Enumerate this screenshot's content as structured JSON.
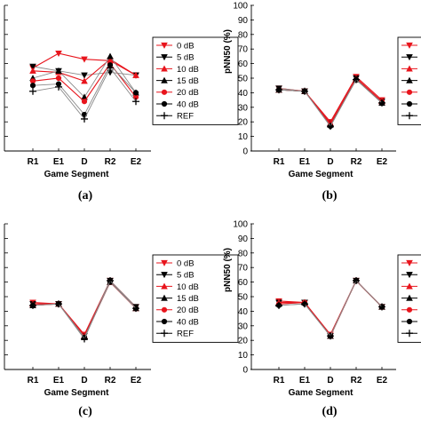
{
  "chart_data": [
    {
      "panel_label": "(a)",
      "type": "line",
      "categories": [
        "R1",
        "E1",
        "D",
        "R2",
        "E2"
      ],
      "xlabel": "Game Segment",
      "ylabel": "",
      "ylim": [
        0,
        100
      ],
      "yticks": [],
      "legend": {
        "entries": [
          "0 dB",
          "5 dB",
          "10 dB",
          "15 dB",
          "20 dB",
          "40 dB",
          "REF"
        ],
        "placement": "right"
      },
      "series": [
        {
          "name": "0 dB",
          "values": [
            57,
            67,
            63,
            62,
            52
          ],
          "color": "#e8141c",
          "marker": "triangle-down"
        },
        {
          "name": "5 dB",
          "values": [
            58,
            55,
            52,
            54,
            52
          ],
          "color": "#000000",
          "marker": "triangle-down"
        },
        {
          "name": "10 dB",
          "values": [
            55,
            54,
            48,
            63,
            52
          ],
          "color": "#e8141c",
          "marker": "triangle-up"
        },
        {
          "name": "15 dB",
          "values": [
            50,
            55,
            37,
            65,
            40
          ],
          "color": "#000000",
          "marker": "triangle-up"
        },
        {
          "name": "20 dB",
          "values": [
            48,
            50,
            34,
            60,
            37
          ],
          "color": "#e8141c",
          "marker": "circle"
        },
        {
          "name": "40 dB",
          "values": [
            45,
            46,
            25,
            59,
            40
          ],
          "color": "#000000",
          "marker": "circle"
        },
        {
          "name": "REF",
          "values": [
            41,
            44,
            22,
            57,
            34
          ],
          "color": "#000000",
          "marker": "plus"
        }
      ]
    },
    {
      "panel_label": "(b)",
      "type": "line",
      "categories": [
        "R1",
        "E1",
        "D",
        "R2",
        "E2"
      ],
      "xlabel": "Game Segment",
      "ylabel": "pNN50 (%)",
      "ylim": [
        0,
        100
      ],
      "yticks": [
        "0",
        "10",
        "20",
        "30",
        "40",
        "50",
        "60",
        "70",
        "80",
        "90",
        "100"
      ],
      "legend": {
        "entries": [],
        "placement": "right"
      },
      "series": [
        {
          "name": "",
          "values": [
            43,
            41,
            20,
            51,
            35
          ],
          "color": "#e8141c",
          "marker": "triangle-down"
        },
        {
          "name": "",
          "values": [
            43,
            41,
            19,
            50,
            34
          ],
          "color": "#000000",
          "marker": "triangle-down"
        },
        {
          "name": "",
          "values": [
            42,
            41,
            19,
            50,
            34
          ],
          "color": "#e8141c",
          "marker": "triangle-up"
        },
        {
          "name": "",
          "values": [
            42,
            41,
            18,
            49,
            33
          ],
          "color": "#000000",
          "marker": "triangle-up"
        },
        {
          "name": "",
          "values": [
            42,
            41,
            18,
            49,
            34
          ],
          "color": "#e8141c",
          "marker": "circle"
        },
        {
          "name": "",
          "values": [
            42,
            41,
            17,
            49,
            33
          ],
          "color": "#000000",
          "marker": "circle"
        },
        {
          "name": "",
          "values": [
            42,
            41,
            17,
            49,
            33
          ],
          "color": "#000000",
          "marker": "plus"
        }
      ]
    },
    {
      "panel_label": "(c)",
      "type": "line",
      "categories": [
        "R1",
        "E1",
        "D",
        "R2",
        "E2"
      ],
      "xlabel": "Game Segment",
      "ylabel": "",
      "ylim": [
        0,
        100
      ],
      "yticks": [],
      "legend": {
        "entries": [
          "0 dB",
          "5 dB",
          "10 dB",
          "15 dB",
          "20 dB",
          "40 dB",
          "REF"
        ],
        "placement": "right"
      },
      "series": [
        {
          "name": "0 dB",
          "values": [
            46,
            45,
            24,
            61,
            43
          ],
          "color": "#e8141c",
          "marker": "triangle-down"
        },
        {
          "name": "5 dB",
          "values": [
            45,
            45,
            23,
            61,
            43
          ],
          "color": "#000000",
          "marker": "triangle-down"
        },
        {
          "name": "10 dB",
          "values": [
            45,
            45,
            23,
            60,
            42
          ],
          "color": "#e8141c",
          "marker": "triangle-up"
        },
        {
          "name": "15 dB",
          "values": [
            44,
            45,
            22,
            60,
            42
          ],
          "color": "#000000",
          "marker": "triangle-up"
        },
        {
          "name": "20 dB",
          "values": [
            44,
            45,
            22,
            60,
            42
          ],
          "color": "#e8141c",
          "marker": "circle"
        },
        {
          "name": "40 dB",
          "values": [
            44,
            45,
            22,
            60,
            42
          ],
          "color": "#000000",
          "marker": "circle"
        },
        {
          "name": "REF",
          "values": [
            44,
            45,
            21,
            61,
            42
          ],
          "color": "#000000",
          "marker": "plus"
        }
      ]
    },
    {
      "panel_label": "(d)",
      "type": "line",
      "categories": [
        "R1",
        "E1",
        "D",
        "R2",
        "E2"
      ],
      "xlabel": "Game Segment",
      "ylabel": "pNN50 (%)",
      "ylim": [
        0,
        100
      ],
      "yticks": [
        "0",
        "10",
        "20",
        "30",
        "40",
        "50",
        "60",
        "70",
        "80",
        "90",
        "100"
      ],
      "legend": {
        "entries": [],
        "placement": "right"
      },
      "series": [
        {
          "name": "",
          "values": [
            47,
            46,
            24,
            61,
            43
          ],
          "color": "#e8141c",
          "marker": "triangle-down"
        },
        {
          "name": "",
          "values": [
            46,
            46,
            23,
            61,
            43
          ],
          "color": "#000000",
          "marker": "triangle-down"
        },
        {
          "name": "",
          "values": [
            46,
            46,
            23,
            61,
            43
          ],
          "color": "#e8141c",
          "marker": "triangle-up"
        },
        {
          "name": "",
          "values": [
            45,
            46,
            23,
            61,
            43
          ],
          "color": "#000000",
          "marker": "triangle-up"
        },
        {
          "name": "",
          "values": [
            45,
            46,
            23,
            61,
            43
          ],
          "color": "#e8141c",
          "marker": "circle"
        },
        {
          "name": "",
          "values": [
            44,
            45,
            23,
            61,
            43
          ],
          "color": "#000000",
          "marker": "circle"
        },
        {
          "name": "",
          "values": [
            44,
            45,
            23,
            61,
            43
          ],
          "color": "#000000",
          "marker": "plus"
        }
      ]
    }
  ]
}
